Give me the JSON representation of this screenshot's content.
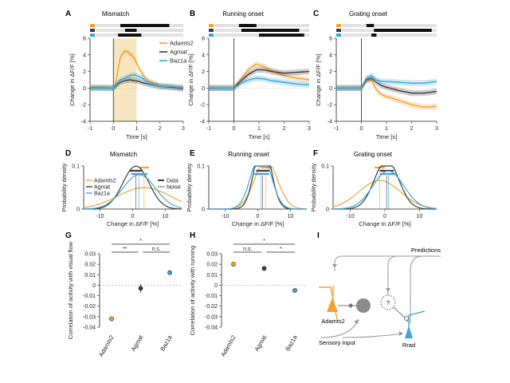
{
  "colors": {
    "adamts2": "#f5a033",
    "agmat": "#3c3c3c",
    "baz1a": "#3aa6dc",
    "shade": "#f7e7c0",
    "predictions_arrow": "#999999"
  },
  "panels": {
    "A": {
      "letter": "A",
      "title": "Mismatch"
    },
    "B": {
      "letter": "B",
      "title": "Running onset"
    },
    "C": {
      "letter": "C",
      "title": "Grating onset"
    },
    "D": {
      "letter": "D",
      "title": "Mismatch"
    },
    "E": {
      "letter": "E",
      "title": "Running onset"
    },
    "F": {
      "letter": "F",
      "title": "Grating onset"
    },
    "G": {
      "letter": "G"
    },
    "H": {
      "letter": "H"
    },
    "I": {
      "letter": "I"
    }
  },
  "schematic": {
    "predictions": "Predictions",
    "sensory_input": "Sensory input",
    "adamts2": "Adamts2",
    "rrad": "Rrad",
    "question": "?"
  },
  "chart_data": [
    {
      "panel": "A",
      "type": "line",
      "title": "Mismatch",
      "xlabel": "Time [s]",
      "ylabel": "Change in ΔF/F [%]",
      "xlim": [
        -1,
        3
      ],
      "ylim": [
        -4,
        6
      ],
      "xticks": [
        -1,
        0,
        1,
        2,
        3
      ],
      "yticks": [
        -4,
        -2,
        0,
        2,
        4,
        6
      ],
      "x": [
        -1,
        -0.5,
        0,
        0.1,
        0.2,
        0.3,
        0.5,
        0.7,
        0.9,
        1.1,
        1.3,
        1.5,
        2,
        2.5,
        3
      ],
      "series": [
        {
          "name": "Adamts2",
          "values": [
            0.1,
            0.1,
            0,
            0.5,
            2.3,
            3.7,
            4.5,
            4.2,
            3.6,
            2.4,
            1.5,
            0.9,
            0.3,
            0.1,
            0.1
          ]
        },
        {
          "name": "Agmat",
          "values": [
            0,
            0,
            0,
            0.2,
            0.5,
            0.7,
            0.9,
            1.0,
            0.9,
            0.8,
            0.6,
            0.5,
            0.2,
            0.1,
            -0.1
          ]
        },
        {
          "name": "Baz1a",
          "values": [
            0,
            0,
            0,
            0.3,
            0.7,
            1.0,
            1.2,
            1.5,
            1.6,
            1.4,
            1.1,
            0.6,
            0.2,
            0.2,
            0
          ]
        }
      ],
      "shaded_interval": [
        0,
        1
      ],
      "legend": "top-right"
    },
    {
      "panel": "B",
      "type": "line",
      "title": "Running onset",
      "xlabel": "Time [s]",
      "ylabel": "Change in ΔF/F [%]",
      "xlim": [
        -1,
        3
      ],
      "ylim": [
        -4,
        6
      ],
      "xticks": [
        -1,
        0,
        1,
        2,
        3
      ],
      "yticks": [
        -4,
        -2,
        0,
        2,
        4,
        6
      ],
      "x": [
        -1,
        -0.5,
        0,
        0.3,
        0.6,
        0.9,
        1.2,
        1.5,
        2,
        2.5,
        3
      ],
      "series": [
        {
          "name": "Adamts2",
          "values": [
            0,
            0,
            0,
            1.2,
            2.3,
            2.9,
            2.6,
            2.1,
            1.5,
            1.2,
            1.0
          ]
        },
        {
          "name": "Agmat",
          "values": [
            0,
            0,
            0,
            0.9,
            1.7,
            2.2,
            2.2,
            2.0,
            1.8,
            1.9,
            2.0
          ]
        },
        {
          "name": "Baz1a",
          "values": [
            0,
            0,
            0,
            0.6,
            1.0,
            1.2,
            1.1,
            0.9,
            0.7,
            0.5,
            0.4
          ]
        }
      ]
    },
    {
      "panel": "C",
      "type": "line",
      "title": "Grating onset",
      "xlabel": "Time [s]",
      "ylabel": "Change in ΔF/F [%]",
      "xlim": [
        -1,
        3
      ],
      "ylim": [
        -4,
        6
      ],
      "xticks": [
        -1,
        0,
        1,
        2,
        3
      ],
      "yticks": [
        -4,
        -2,
        0,
        2,
        4,
        6
      ],
      "x": [
        -1,
        -0.5,
        0,
        0.2,
        0.4,
        0.6,
        0.8,
        1,
        1.5,
        2,
        2.5,
        3
      ],
      "series": [
        {
          "name": "Adamts2",
          "values": [
            0,
            0,
            0,
            0.8,
            1.0,
            -0.2,
            -0.8,
            -1.0,
            -1.5,
            -2.0,
            -2.3,
            -2.2
          ]
        },
        {
          "name": "Agmat",
          "values": [
            0,
            0,
            0,
            1.0,
            1.2,
            0.7,
            0.3,
            0.1,
            -0.3,
            -0.6,
            -0.6,
            -0.4
          ]
        },
        {
          "name": "Baz1a",
          "values": [
            0,
            0,
            0,
            1.2,
            1.5,
            1.0,
            0.8,
            0.8,
            0.7,
            0.6,
            0.6,
            0.8
          ]
        }
      ]
    },
    {
      "panel": "D",
      "type": "line",
      "title": "Mismatch",
      "xlabel": "Change in ΔF/F [%]",
      "ylabel": "Probability density",
      "xlim": [
        -15,
        15
      ],
      "ylim": [
        0,
        0.1
      ],
      "xticks": [
        -10,
        0,
        10
      ],
      "yticks": [
        0,
        0.1
      ],
      "series": [
        {
          "name": "Adamts2",
          "mean": 3.5,
          "sd": 8
        },
        {
          "name": "Agmat",
          "mean": 1.0,
          "sd": 4
        },
        {
          "name": "Baz1a",
          "mean": 2.0,
          "sd": 5
        }
      ],
      "legend_extra": [
        "Data",
        "Noise"
      ]
    },
    {
      "panel": "E",
      "type": "line",
      "title": "Running onset",
      "xlabel": "Change in ΔF/F [%]",
      "ylabel": "Probability density",
      "xlim": [
        -15,
        15
      ],
      "ylim": [
        0,
        0.1
      ],
      "xticks": [
        -10,
        0,
        10
      ],
      "yticks": [
        0,
        0.1
      ],
      "series": [
        {
          "name": "Adamts2",
          "mean": 2.5,
          "sd": 3.5
        },
        {
          "name": "Agmat",
          "mean": 1.5,
          "sd": 2.5
        },
        {
          "name": "Baz1a",
          "mean": 1.0,
          "sd": 3.0
        }
      ]
    },
    {
      "panel": "F",
      "type": "line",
      "title": "Grating onset",
      "xlabel": "Change in ΔF/F [%]",
      "ylabel": "Probability density",
      "xlim": [
        -15,
        15
      ],
      "ylim": [
        0,
        0.1
      ],
      "xticks": [
        -10,
        0,
        10
      ],
      "yticks": [
        0,
        0.1
      ],
      "series": [
        {
          "name": "Adamts2",
          "mean": -1.5,
          "sd": 6
        },
        {
          "name": "Agmat",
          "mean": 0.5,
          "sd": 3.5
        },
        {
          "name": "Baz1a",
          "mean": 1.0,
          "sd": 4.5
        }
      ]
    },
    {
      "panel": "G",
      "type": "scatter",
      "ylabel": "Correlation of activity with visual flow",
      "categories": [
        "Adamts2",
        "Agmat",
        "Baz1a"
      ],
      "values": [
        -0.032,
        -0.003,
        0.012
      ],
      "errors": [
        0.002,
        0.004,
        0.001
      ],
      "ylim": [
        -0.04,
        0.03
      ],
      "yticks": [
        -0.04,
        -0.03,
        -0.02,
        -0.01,
        0,
        0.01,
        0.02,
        0.03
      ],
      "significance": [
        {
          "from": 0,
          "to": 2,
          "label": "*"
        },
        {
          "from": 0,
          "to": 1,
          "label": "**"
        },
        {
          "from": 1,
          "to": 2,
          "label": "n.s."
        }
      ]
    },
    {
      "panel": "H",
      "type": "scatter",
      "ylabel": "Correlation of activity with running",
      "categories": [
        "Adamts2",
        "Agmat",
        "Baz1a"
      ],
      "values": [
        0.02,
        0.016,
        -0.005
      ],
      "errors": [
        0.002,
        0.0015,
        0.0015
      ],
      "ylim": [
        -0.04,
        0.03
      ],
      "yticks": [
        -0.04,
        -0.03,
        -0.02,
        -0.01,
        0,
        0.01,
        0.02,
        0.03
      ],
      "significance": [
        {
          "from": 0,
          "to": 2,
          "label": "*"
        },
        {
          "from": 0,
          "to": 1,
          "label": "n.s."
        },
        {
          "from": 1,
          "to": 2,
          "label": "*"
        }
      ]
    }
  ]
}
